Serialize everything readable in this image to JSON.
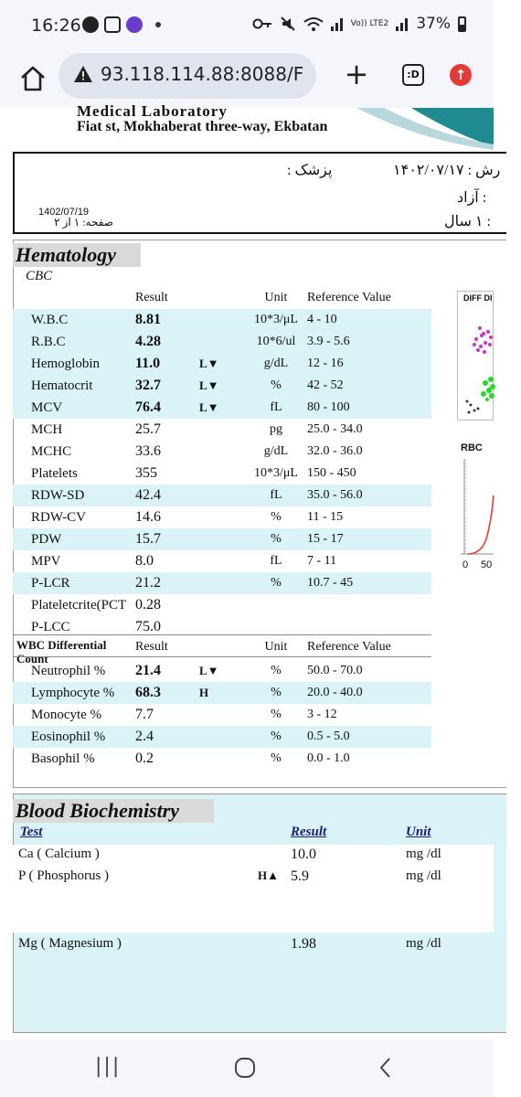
{
  "status_bar": {
    "time": "16:26",
    "network_label": "Vo)) LTE2",
    "battery": "37%"
  },
  "browser": {
    "url": "93.118.114.88:8088/F",
    "tabs_label": ":D"
  },
  "report": {
    "lab_name": "Medical Laboratory",
    "lab_address": "Fiat st, Mokhaberat three-way, Ekbatan",
    "doctor_label": "پزشک :",
    "reception_date_label": "رش : ۱۴۰۲/۰۷/۱۷",
    "insurance_label": ": آزاد",
    "age_label": ": ۱ سال",
    "page_date": "1402/07/19",
    "page_label": "صفحه: ۱ از ۲"
  },
  "hematology": {
    "title": "Hematology",
    "subtitle": "CBC",
    "headers": {
      "result": "Result",
      "unit": "Unit",
      "reference": "Reference Value"
    },
    "rows": [
      {
        "test": "W.B.C",
        "result": "8.81",
        "flag": "",
        "unit": "10*3/μL",
        "reference": "4 - 10"
      },
      {
        "test": "R.B.C",
        "result": "4.28",
        "flag": "",
        "unit": "10*6/ul",
        "reference": "3.9 - 5.6"
      },
      {
        "test": "Hemoglobin",
        "result": "11.0",
        "flag": "L▼",
        "unit": "g/dL",
        "reference": "12 - 16"
      },
      {
        "test": "Hematocrit",
        "result": "32.7",
        "flag": "L▼",
        "unit": "%",
        "reference": "42 - 52"
      },
      {
        "test": "MCV",
        "result": "76.4",
        "flag": "L▼",
        "unit": "fL",
        "reference": "80 - 100"
      },
      {
        "test": "MCH",
        "result": "25.7",
        "flag": "",
        "unit": "pg",
        "reference": "25.0 - 34.0"
      },
      {
        "test": "MCHC",
        "result": "33.6",
        "flag": "",
        "unit": "g/dL",
        "reference": "32.0 - 36.0"
      },
      {
        "test": "Platelets",
        "result": "355",
        "flag": "",
        "unit": "10*3/μL",
        "reference": "150 - 450"
      },
      {
        "test": "RDW-SD",
        "result": "42.4",
        "flag": "",
        "unit": "fL",
        "reference": "35.0 - 56.0"
      },
      {
        "test": "RDW-CV",
        "result": "14.6",
        "flag": "",
        "unit": "%",
        "reference": "11 - 15"
      },
      {
        "test": "PDW",
        "result": "15.7",
        "flag": "",
        "unit": "%",
        "reference": "15 - 17"
      },
      {
        "test": "MPV",
        "result": "8.0",
        "flag": "",
        "unit": "fL",
        "reference": "7 - 11"
      },
      {
        "test": "P-LCR",
        "result": "21.2",
        "flag": "",
        "unit": "%",
        "reference": "10.7 - 45"
      },
      {
        "test": "Plateletcrite(PCT",
        "result": "0.28",
        "flag": "",
        "unit": "",
        "reference": ""
      },
      {
        "test": "P-LCC",
        "result": "75.0",
        "flag": "",
        "unit": "",
        "reference": ""
      }
    ],
    "wbc_diff": {
      "title": "WBC Differential Count",
      "headers": {
        "result": "Result",
        "unit": "Unit",
        "reference": "Reference Value"
      },
      "rows": [
        {
          "test": "Neutrophil %",
          "result": "21.4",
          "flag": "L▼",
          "unit": "%",
          "reference": "50.0 - 70.0"
        },
        {
          "test": "Lymphocyte %",
          "result": "68.3",
          "flag": "H",
          "unit": "%",
          "reference": "20.0 - 40.0"
        },
        {
          "test": "Monocyte %",
          "result": "7.7",
          "flag": "",
          "unit": "%",
          "reference": "3 - 12"
        },
        {
          "test": "Eosinophil %",
          "result": "2.4",
          "flag": "",
          "unit": "%",
          "reference": "0.5 - 5.0"
        },
        {
          "test": "Basophil %",
          "result": "0.2",
          "flag": "",
          "unit": "%",
          "reference": "0.0 - 1.0"
        }
      ]
    },
    "histograms": {
      "diff_label": "DIFF DI",
      "rbc_label": "RBC",
      "rbc_axis_start": "0",
      "rbc_axis_mid": "50"
    }
  },
  "biochemistry": {
    "title": "Blood Biochemistry",
    "headers": {
      "test": "Test",
      "result": "Result",
      "unit": "Unit"
    },
    "rows": [
      {
        "test": "Ca ( Calcium )",
        "flag": "",
        "result": "10.0",
        "unit": "mg /dl"
      },
      {
        "test": "P ( Phosphorus )",
        "flag": "H▲",
        "result": "5.9",
        "unit": "mg /dl"
      },
      {
        "test": "Mg ( Magnesium )",
        "flag": "",
        "result": "1.98",
        "unit": "mg /dl"
      }
    ]
  },
  "nav_bar": {
    "recents": "|||",
    "home": "○",
    "back": "<"
  },
  "colors": {
    "row_shade": "#d9f3f6",
    "section_bg": "#d9d9d9",
    "header_link": "#1a1a80",
    "alert": "#e53935"
  }
}
